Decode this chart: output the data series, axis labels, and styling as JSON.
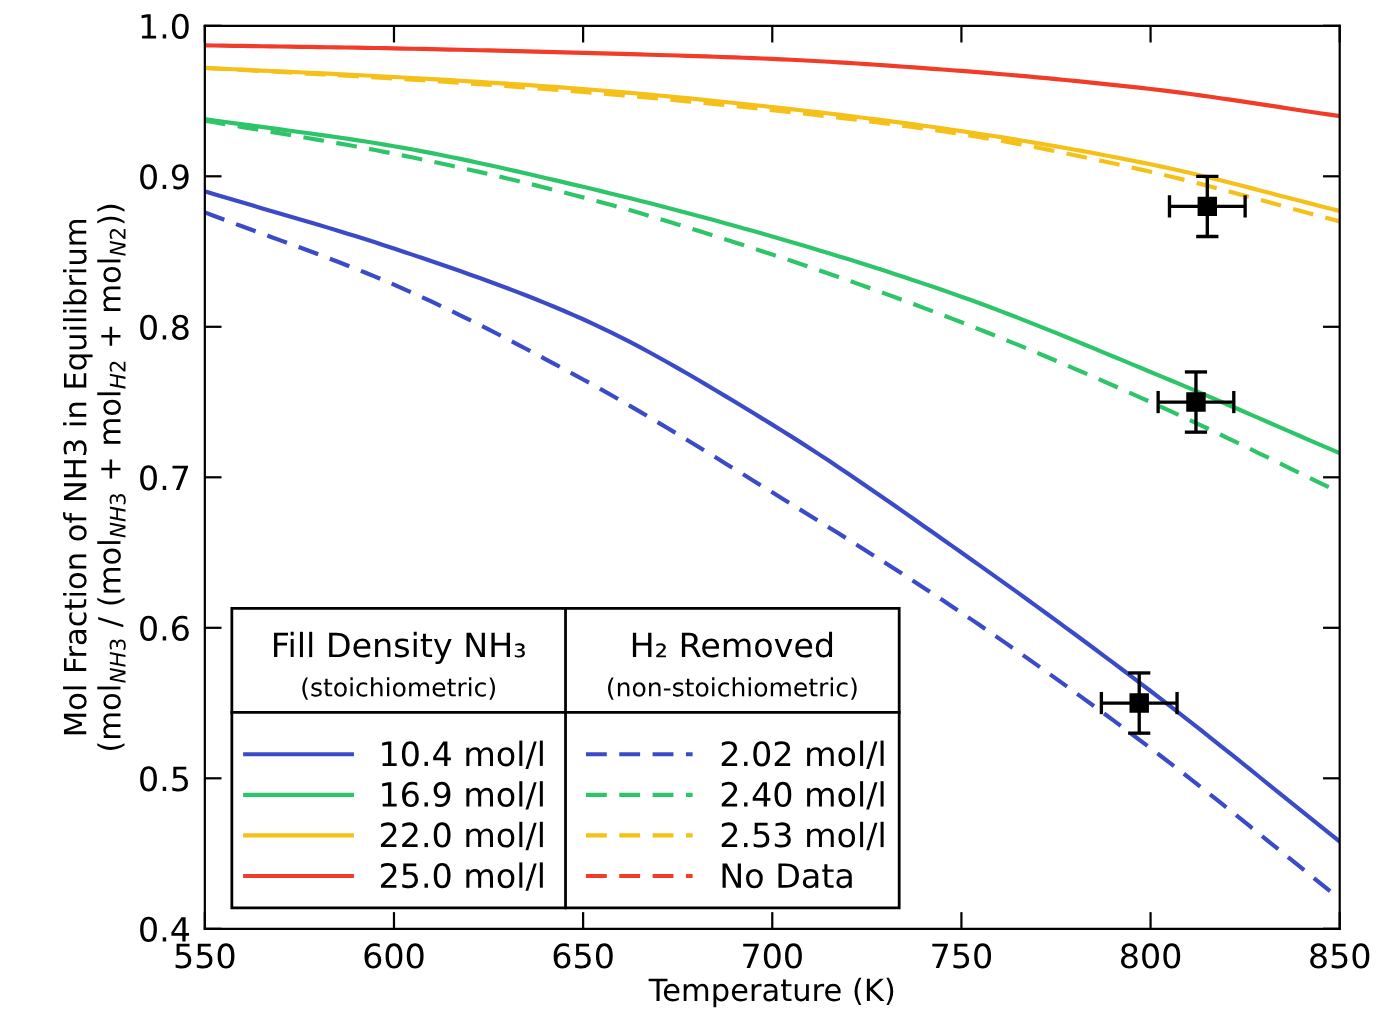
{
  "chart_data": {
    "type": "line",
    "xlabel": "Temperature (K)",
    "ylabel": "Mol Fraction of NH3 in Equilibrium\n(mol$_{NH3}$ / (mol$_{NH3}$ + mol$_{H2}$ + mol$_{N2}$))",
    "x": [
      550,
      600,
      650,
      700,
      750,
      800,
      850
    ],
    "xlim": [
      550,
      850
    ],
    "xticks": [
      550,
      600,
      650,
      700,
      750,
      800,
      850
    ],
    "ylim": [
      0.4,
      1.0
    ],
    "yticks": [
      0.4,
      0.5,
      0.6,
      0.7,
      0.8,
      0.9,
      {
        "value": 1.0,
        "label": "1.0"
      }
    ],
    "grid": false,
    "legend": "bottom left",
    "annotations": [
      "Fill Density NH₃",
      "(stoichiometric)",
      "H₂ Removed",
      "(non-stoichiometric)"
    ],
    "series": [
      {
        "name": "10.4 mol/l",
        "color": "#3b4bc8",
        "line_style": "solid",
        "values": [
          0.89,
          0.852,
          0.805,
          0.735,
          0.65,
          0.558,
          0.458
        ]
      },
      {
        "name": "16.9 mol/l",
        "color": "#2ec46a",
        "line_style": "solid",
        "values": [
          0.938,
          0.92,
          0.893,
          0.86,
          0.82,
          0.77,
          0.716
        ]
      },
      {
        "name": "22.0 mol/l",
        "color": "#f5c018",
        "line_style": "solid",
        "values": [
          0.972,
          0.966,
          0.958,
          0.946,
          0.93,
          0.908,
          0.877
        ]
      },
      {
        "name": "25.0 mol/l",
        "color": "#f03c28",
        "line_style": "solid",
        "values": [
          0.987,
          0.985,
          0.982,
          0.978,
          0.97,
          0.958,
          0.94
        ]
      },
      {
        "name": "2.02 mol/l",
        "color": "#3b4bc8",
        "line_style": "dashed",
        "values": [
          0.876,
          0.828,
          0.765,
          0.69,
          0.61,
          0.52,
          0.42
        ]
      },
      {
        "name": "2.40 mol/l",
        "color": "#2ec46a",
        "line_style": "dashed",
        "values": [
          0.937,
          0.915,
          0.886,
          0.848,
          0.803,
          0.75,
          0.69
        ]
      },
      {
        "name": "2.53 mol/l",
        "color": "#f5c018",
        "line_style": "dashed",
        "values": [
          0.972,
          0.965,
          0.956,
          0.944,
          0.928,
          0.903,
          0.87
        ]
      },
      {
        "name": "No Data",
        "color": "#f03c28",
        "line_style": "dashed",
        "values": [
          null,
          null,
          null,
          null,
          null,
          null,
          null
        ]
      },
      {
        "type": "scatter",
        "color": "#000000",
        "marker": "square",
        "x": [
          797,
          812,
          815
        ],
        "values": [
          0.55,
          0.75,
          0.88
        ],
        "errors": [
          0.02,
          0.02,
          0.02
        ],
        "xerrors": [
          10,
          10,
          10
        ]
      }
    ]
  }
}
